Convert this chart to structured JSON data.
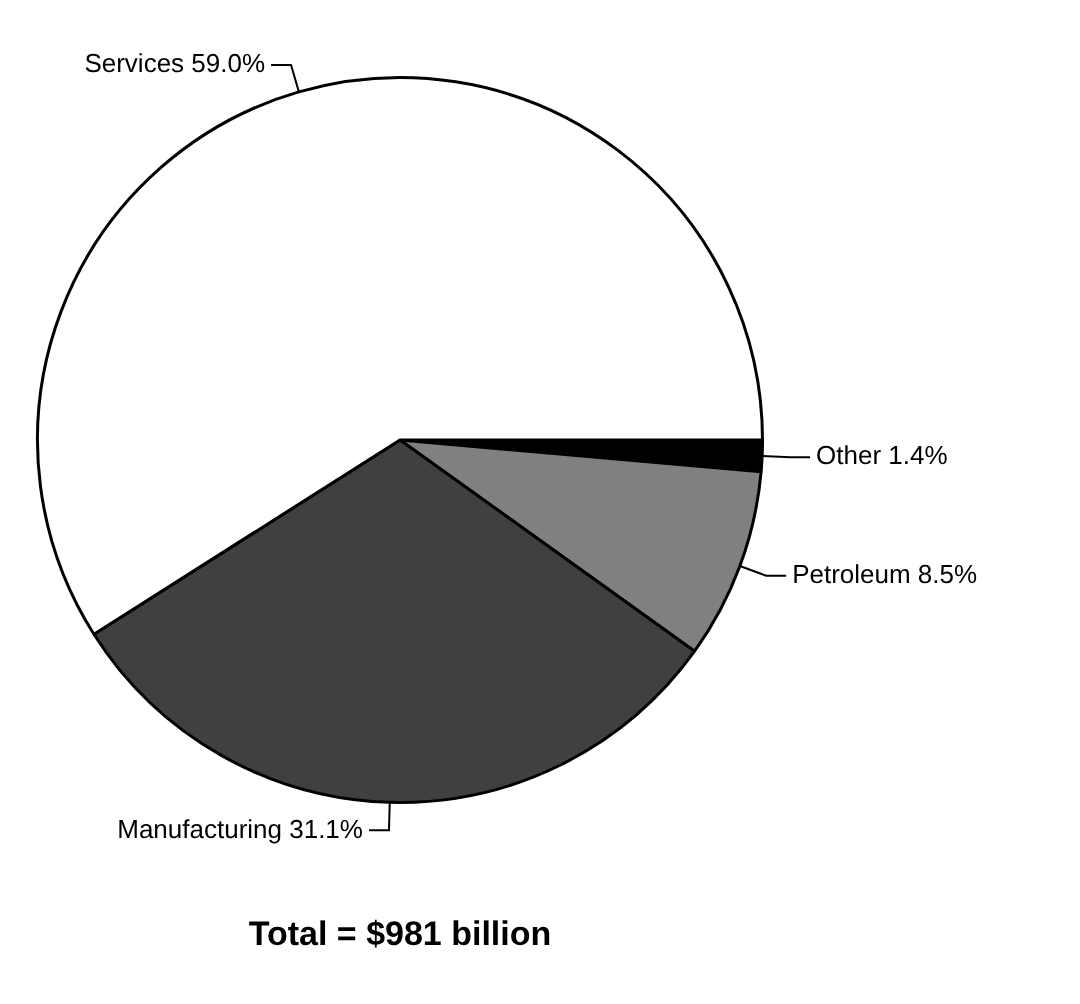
{
  "chart_data": {
    "type": "pie",
    "title": "Total = $981 billion",
    "categories": [
      "Other",
      "Petroleum",
      "Manufacturing",
      "Services"
    ],
    "values": [
      1.4,
      8.5,
      31.1,
      59.0
    ],
    "value_labels": [
      "1.4%",
      "8.5%",
      "31.1%",
      "59.0%"
    ],
    "colors": [
      "#000000",
      "#808080",
      "#404040",
      "#ffffff"
    ],
    "legend": false
  }
}
